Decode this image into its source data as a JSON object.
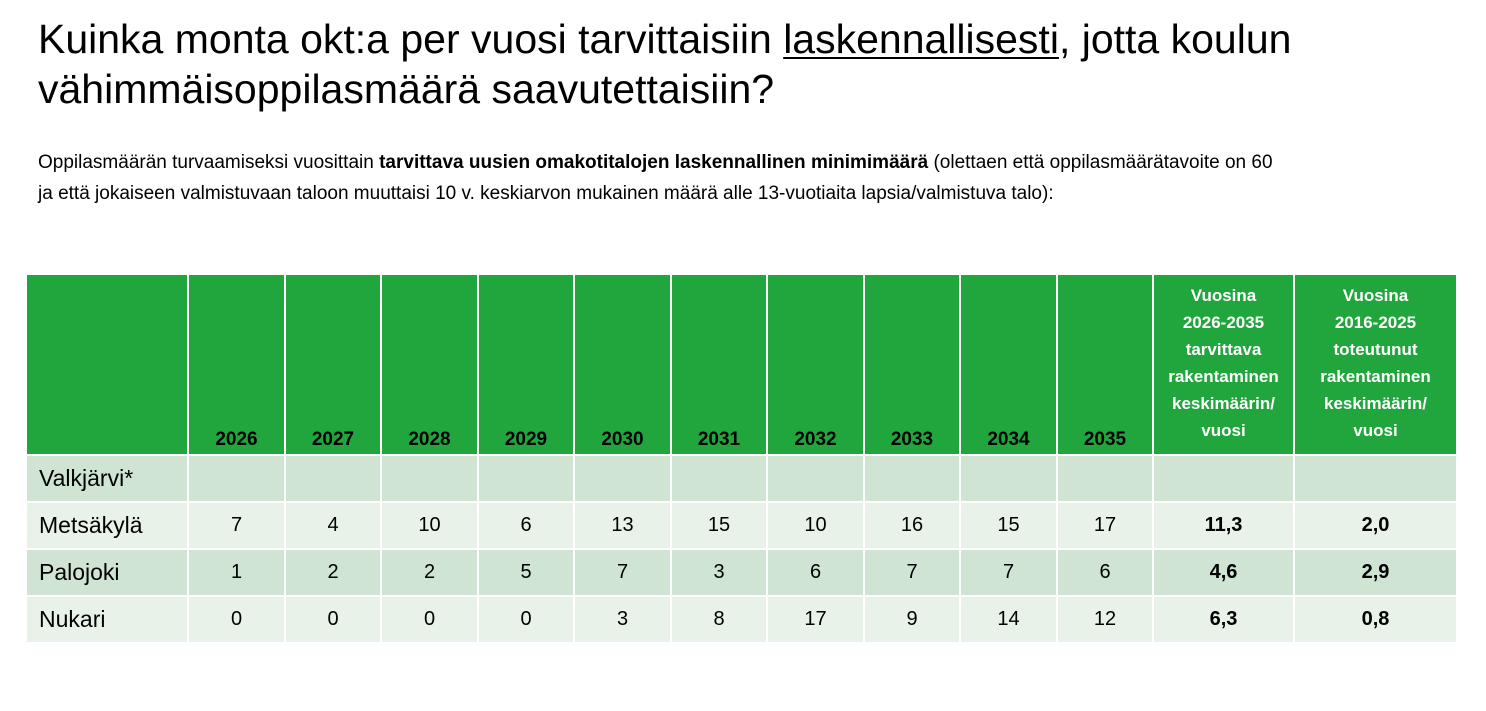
{
  "title": {
    "part1": "Kuinka monta okt:a per vuosi tarvittaisiin ",
    "underlined": "laskennallisesti",
    "part2": ", jotta koulun vähimmäisoppilasmäärä saavutettaisiin?"
  },
  "intro": {
    "part1": "Oppilasmäärän turvaamiseksi vuosittain ",
    "bold": "tarvittava uusien omakotitalojen laskennallinen  minimimäärä",
    "part2": " (olettaen että oppilasmäärätavoite on 60 ja että jokaiseen valmistuvaan taloon muuttaisi 10 v. keskiarvon mukainen määrä alle 13-vuotiaita lapsia/valmistuva talo):"
  },
  "table": {
    "name_header": "",
    "years": [
      "2026",
      "2027",
      "2028",
      "2029",
      "2030",
      "2031",
      "2032",
      "2033",
      "2034",
      "2035"
    ],
    "sum_headers": [
      [
        "Vuosina",
        "2026-2035",
        "tarvittava",
        "rakentaminen",
        "keskimäärin/",
        "vuosi"
      ],
      [
        "Vuosina",
        "2016-2025",
        "toteutunut",
        "rakentaminen",
        "keskimäärin/",
        "vuosi"
      ]
    ],
    "rows": [
      {
        "name": "Valkjärvi*",
        "values": [
          "",
          "",
          "",
          "",
          "",
          "",
          "",
          "",
          "",
          ""
        ],
        "needed": "",
        "realized": ""
      },
      {
        "name": "Metsäkylä",
        "values": [
          "7",
          "4",
          "10",
          "6",
          "13",
          "15",
          "10",
          "16",
          "15",
          "17"
        ],
        "needed": "11,3",
        "realized": "2,0"
      },
      {
        "name": "Palojoki",
        "values": [
          "1",
          "2",
          "2",
          "5",
          "7",
          "3",
          "6",
          "7",
          "7",
          "6"
        ],
        "needed": "4,6",
        "realized": "2,9"
      },
      {
        "name": "Nukari",
        "values": [
          "0",
          "0",
          "0",
          "0",
          "3",
          "8",
          "17",
          "9",
          "14",
          "12"
        ],
        "needed": "6,3",
        "realized": "0,8"
      }
    ]
  }
}
